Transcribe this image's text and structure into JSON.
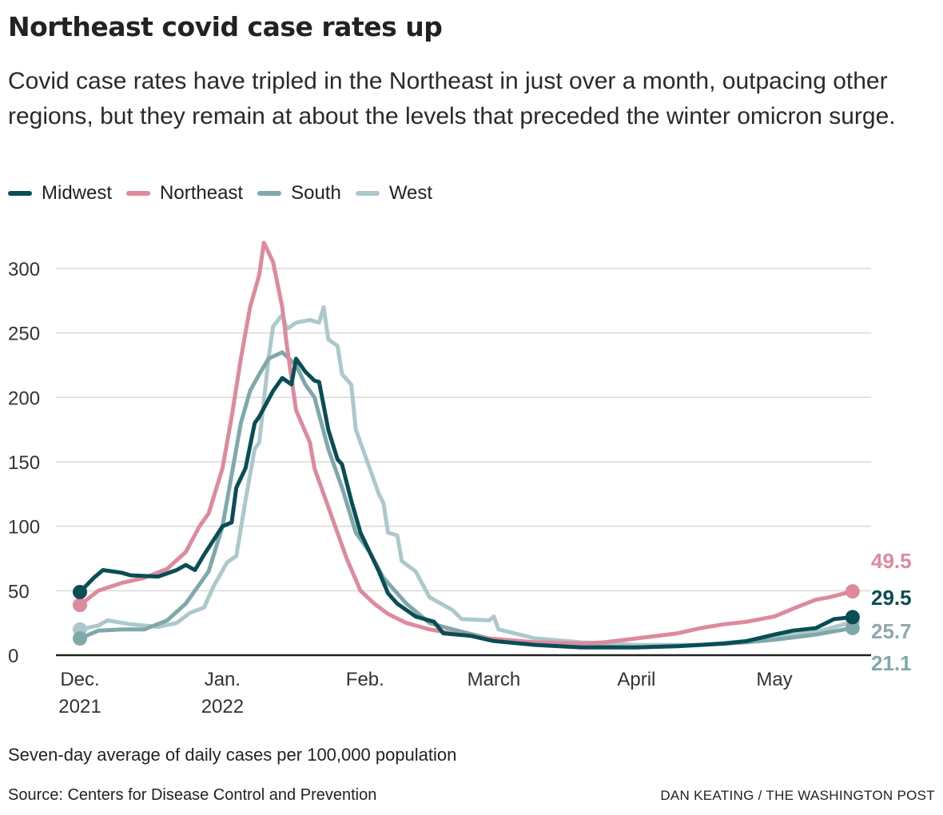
{
  "title": "Northeast covid case rates up",
  "subtitle": "Covid case rates have tripled in the Northeast in just over a month, outpacing other regions, but they remain at about the levels that preceded the winter omicron surge.",
  "note": "Seven-day average of daily cases per 100,000 population",
  "source": "Source: Centers for Disease Control and Prevention",
  "credit": "DAN KEATING / THE WASHINGTON POST",
  "chart_data": {
    "type": "line",
    "ylim": [
      0,
      300
    ],
    "yticks": [
      "0",
      "50",
      "100",
      "150",
      "200",
      "250",
      "300"
    ],
    "grid": true,
    "legend": "top-left",
    "xticks": [
      {
        "date": "2021-12-01",
        "l1": "Dec.",
        "l2": "2021"
      },
      {
        "date": "2022-01-01",
        "l1": "Jan.",
        "l2": "2022"
      },
      {
        "date": "2022-02-01",
        "l1": "Feb.",
        "l2": ""
      },
      {
        "date": "2022-03-01",
        "l1": "March",
        "l2": ""
      },
      {
        "date": "2022-04-01",
        "l1": "April",
        "l2": ""
      },
      {
        "date": "2022-05-01",
        "l1": "May",
        "l2": ""
      }
    ],
    "series": [
      {
        "name": "West",
        "color": "#acc8cb",
        "end_label": "25.7",
        "label_color": "#8fa8ac",
        "points": [
          [
            "2021-12-01",
            20
          ],
          [
            "2021-12-05",
            23
          ],
          [
            "2021-12-07",
            27
          ],
          [
            "2021-12-12",
            24
          ],
          [
            "2021-12-18",
            22
          ],
          [
            "2021-12-22",
            25
          ],
          [
            "2021-12-25",
            33
          ],
          [
            "2021-12-28",
            37
          ],
          [
            "2021-12-30",
            53
          ],
          [
            "2022-01-02",
            72
          ],
          [
            "2022-01-04",
            77
          ],
          [
            "2022-01-06",
            120
          ],
          [
            "2022-01-08",
            160
          ],
          [
            "2022-01-09",
            165
          ],
          [
            "2022-01-11",
            230
          ],
          [
            "2022-01-12",
            255
          ],
          [
            "2022-01-14",
            264
          ],
          [
            "2022-01-15",
            253
          ],
          [
            "2022-01-17",
            258
          ],
          [
            "2022-01-20",
            260
          ],
          [
            "2022-01-22",
            258
          ],
          [
            "2022-01-23",
            270
          ],
          [
            "2022-01-24",
            245
          ],
          [
            "2022-01-26",
            240
          ],
          [
            "2022-01-27",
            218
          ],
          [
            "2022-01-29",
            210
          ],
          [
            "2022-01-30",
            175
          ],
          [
            "2022-02-01",
            155
          ],
          [
            "2022-02-04",
            125
          ],
          [
            "2022-02-05",
            118
          ],
          [
            "2022-02-06",
            95
          ],
          [
            "2022-02-08",
            93
          ],
          [
            "2022-02-09",
            73
          ],
          [
            "2022-02-12",
            65
          ],
          [
            "2022-02-15",
            45
          ],
          [
            "2022-02-20",
            35
          ],
          [
            "2022-02-22",
            28
          ],
          [
            "2022-02-28",
            27
          ],
          [
            "2022-03-01",
            30
          ],
          [
            "2022-03-02",
            20
          ],
          [
            "2022-03-10",
            13
          ],
          [
            "2022-03-20",
            10
          ],
          [
            "2022-04-01",
            8
          ],
          [
            "2022-04-15",
            8
          ],
          [
            "2022-04-25",
            11
          ],
          [
            "2022-05-01",
            14
          ],
          [
            "2022-05-10",
            18
          ],
          [
            "2022-05-18",
            25.7
          ]
        ]
      },
      {
        "name": "South",
        "color": "#7fa8ab",
        "end_label": "21.1",
        "label_color": "#7fa8ab",
        "points": [
          [
            "2021-12-01",
            13
          ],
          [
            "2021-12-05",
            19
          ],
          [
            "2021-12-10",
            20
          ],
          [
            "2021-12-15",
            20
          ],
          [
            "2021-12-20",
            27
          ],
          [
            "2021-12-24",
            40
          ],
          [
            "2021-12-27",
            55
          ],
          [
            "2021-12-29",
            65
          ],
          [
            "2022-01-01",
            100
          ],
          [
            "2022-01-03",
            140
          ],
          [
            "2022-01-05",
            180
          ],
          [
            "2022-01-07",
            205
          ],
          [
            "2022-01-09",
            218
          ],
          [
            "2022-01-11",
            230
          ],
          [
            "2022-01-14",
            235
          ],
          [
            "2022-01-17",
            225
          ],
          [
            "2022-01-19",
            210
          ],
          [
            "2022-01-21",
            200
          ],
          [
            "2022-01-24",
            160
          ],
          [
            "2022-01-27",
            130
          ],
          [
            "2022-01-30",
            95
          ],
          [
            "2022-02-02",
            80
          ],
          [
            "2022-02-05",
            60
          ],
          [
            "2022-02-10",
            40
          ],
          [
            "2022-02-15",
            25
          ],
          [
            "2022-02-20",
            20
          ],
          [
            "2022-03-01",
            12
          ],
          [
            "2022-03-10",
            9
          ],
          [
            "2022-03-20",
            7
          ],
          [
            "2022-04-01",
            6
          ],
          [
            "2022-04-15",
            8
          ],
          [
            "2022-04-25",
            10
          ],
          [
            "2022-05-01",
            12
          ],
          [
            "2022-05-10",
            16
          ],
          [
            "2022-05-18",
            21.1
          ]
        ]
      },
      {
        "name": "Northeast",
        "color": "#dd8a9c",
        "end_label": "49.5",
        "label_color": "#dd8a9c",
        "points": [
          [
            "2021-12-01",
            39
          ],
          [
            "2021-12-05",
            50
          ],
          [
            "2021-12-10",
            56
          ],
          [
            "2021-12-15",
            60
          ],
          [
            "2021-12-20",
            67
          ],
          [
            "2021-12-24",
            80
          ],
          [
            "2021-12-27",
            100
          ],
          [
            "2021-12-29",
            110
          ],
          [
            "2022-01-01",
            145
          ],
          [
            "2022-01-03",
            185
          ],
          [
            "2022-01-05",
            230
          ],
          [
            "2022-01-07",
            270
          ],
          [
            "2022-01-09",
            295
          ],
          [
            "2022-01-10",
            320
          ],
          [
            "2022-01-12",
            305
          ],
          [
            "2022-01-14",
            270
          ],
          [
            "2022-01-15",
            240
          ],
          [
            "2022-01-17",
            190
          ],
          [
            "2022-01-20",
            165
          ],
          [
            "2022-01-21",
            145
          ],
          [
            "2022-01-23",
            125
          ],
          [
            "2022-01-26",
            95
          ],
          [
            "2022-01-28",
            75
          ],
          [
            "2022-01-31",
            50
          ],
          [
            "2022-02-03",
            40
          ],
          [
            "2022-02-06",
            32
          ],
          [
            "2022-02-10",
            25
          ],
          [
            "2022-02-15",
            20
          ],
          [
            "2022-02-20",
            17
          ],
          [
            "2022-02-28",
            13
          ],
          [
            "2022-03-10",
            10
          ],
          [
            "2022-03-20",
            9
          ],
          [
            "2022-03-25",
            10
          ],
          [
            "2022-04-01",
            13
          ],
          [
            "2022-04-10",
            17
          ],
          [
            "2022-04-15",
            21
          ],
          [
            "2022-04-20",
            24
          ],
          [
            "2022-04-25",
            26
          ],
          [
            "2022-05-01",
            30
          ],
          [
            "2022-05-05",
            36
          ],
          [
            "2022-05-10",
            43
          ],
          [
            "2022-05-13",
            45
          ],
          [
            "2022-05-18",
            49.5
          ]
        ]
      },
      {
        "name": "Midwest",
        "color": "#0a4d55",
        "end_label": "29.5",
        "label_color": "#0a4d55",
        "points": [
          [
            "2021-12-01",
            49
          ],
          [
            "2021-12-04",
            60
          ],
          [
            "2021-12-06",
            66
          ],
          [
            "2021-12-10",
            64
          ],
          [
            "2021-12-12",
            62
          ],
          [
            "2021-12-18",
            61
          ],
          [
            "2021-12-22",
            66
          ],
          [
            "2021-12-24",
            70
          ],
          [
            "2021-12-26",
            66
          ],
          [
            "2021-12-28",
            78
          ],
          [
            "2022-01-01",
            100
          ],
          [
            "2022-01-03",
            103
          ],
          [
            "2022-01-04",
            130
          ],
          [
            "2022-01-06",
            145
          ],
          [
            "2022-01-08",
            180
          ],
          [
            "2022-01-09",
            185
          ],
          [
            "2022-01-12",
            205
          ],
          [
            "2022-01-14",
            215
          ],
          [
            "2022-01-16",
            210
          ],
          [
            "2022-01-17",
            230
          ],
          [
            "2022-01-19",
            220
          ],
          [
            "2022-01-21",
            213
          ],
          [
            "2022-01-22",
            212
          ],
          [
            "2022-01-24",
            175
          ],
          [
            "2022-01-26",
            152
          ],
          [
            "2022-01-27",
            148
          ],
          [
            "2022-01-29",
            120
          ],
          [
            "2022-01-31",
            95
          ],
          [
            "2022-02-02",
            80
          ],
          [
            "2022-02-04",
            65
          ],
          [
            "2022-02-06",
            48
          ],
          [
            "2022-02-08",
            40
          ],
          [
            "2022-02-12",
            30
          ],
          [
            "2022-02-16",
            26
          ],
          [
            "2022-02-18",
            17
          ],
          [
            "2022-02-24",
            15
          ],
          [
            "2022-03-01",
            11
          ],
          [
            "2022-03-10",
            8
          ],
          [
            "2022-03-20",
            6
          ],
          [
            "2022-04-01",
            6
          ],
          [
            "2022-04-10",
            7
          ],
          [
            "2022-04-20",
            9
          ],
          [
            "2022-04-25",
            11
          ],
          [
            "2022-05-01",
            16
          ],
          [
            "2022-05-05",
            19
          ],
          [
            "2022-05-10",
            21
          ],
          [
            "2022-05-14",
            28
          ],
          [
            "2022-05-18",
            29.5
          ]
        ]
      }
    ],
    "legend_order": [
      "Midwest",
      "Northeast",
      "South",
      "West"
    ]
  }
}
